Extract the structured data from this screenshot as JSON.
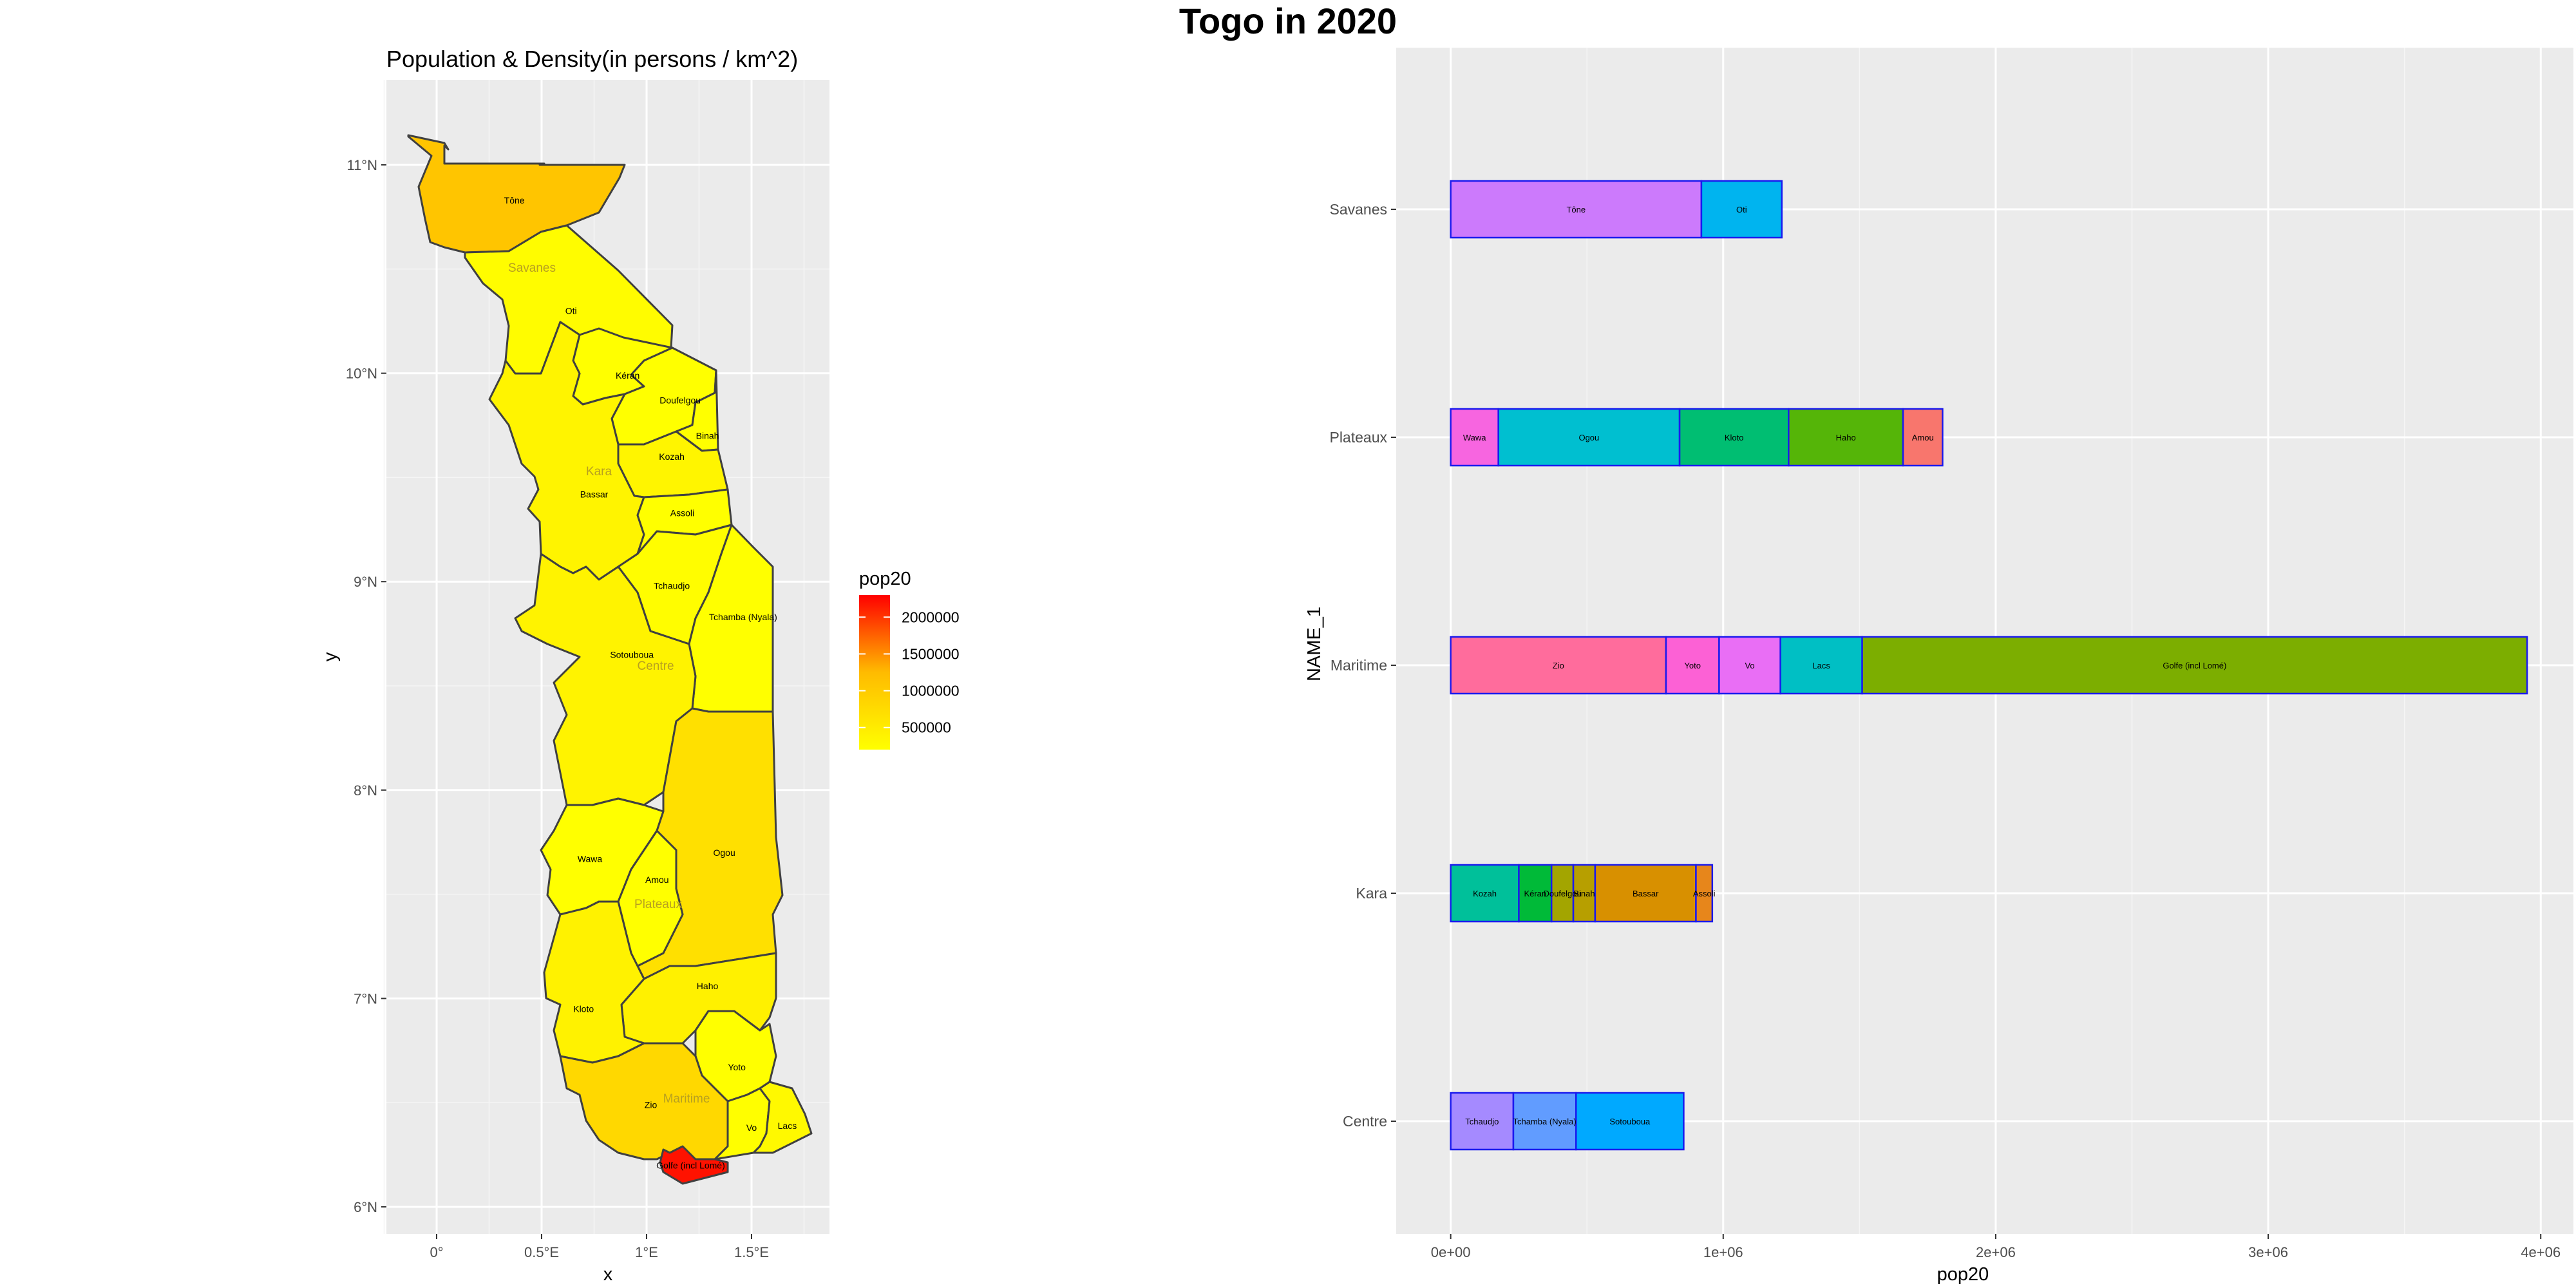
{
  "page": {
    "title": "Togo in 2020"
  },
  "colors": {
    "panel_bg": "#ebebeb",
    "grid": "#ffffff",
    "border": "#404040",
    "bar_outline": "#1a1aee",
    "low": "#ffff00",
    "mid": "#ffbb00",
    "high": "#ff0000"
  },
  "map": {
    "title": "Population & Density(in persons / km^2)",
    "xlabel": "x",
    "ylabel": "y",
    "x_ticks": [
      "0°",
      "0.5°E",
      "1°E",
      "1.5°E"
    ],
    "y_ticks": [
      "6°N",
      "7°N",
      "8°N",
      "9°N",
      "10°N",
      "11°N"
    ],
    "legend": {
      "title": "pop20",
      "labels": [
        "2000000",
        "1500000",
        "1000000",
        "500000"
      ],
      "range": [
        200000,
        2300000
      ]
    },
    "region_labels": [
      "Savanes",
      "Kara",
      "Centre",
      "Plateaux",
      "Maritime"
    ],
    "prefectures": [
      {
        "name": "Tône",
        "lon": 0.37,
        "lat": 10.83,
        "pop": 1100000
      },
      {
        "name": "Oti",
        "lon": 0.64,
        "lat": 10.3,
        "pop": 250000
      },
      {
        "name": "Kéran",
        "lon": 0.91,
        "lat": 9.99,
        "pop": 180000
      },
      {
        "name": "Doufelgou",
        "lon": 1.16,
        "lat": 9.87,
        "pop": 160000
      },
      {
        "name": "Binah",
        "lon": 1.29,
        "lat": 9.7,
        "pop": 180000
      },
      {
        "name": "Kozah",
        "lon": 1.12,
        "lat": 9.6,
        "pop": 350000
      },
      {
        "name": "Bassar",
        "lon": 0.75,
        "lat": 9.42,
        "pop": 370000
      },
      {
        "name": "Assoli",
        "lon": 1.17,
        "lat": 9.33,
        "pop": 150000
      },
      {
        "name": "Tchaudjo",
        "lon": 1.12,
        "lat": 8.98,
        "pop": 230000
      },
      {
        "name": "Tchamba (Nyala)",
        "lon": 1.46,
        "lat": 8.83,
        "pop": 180000
      },
      {
        "name": "Sotouboua",
        "lon": 0.93,
        "lat": 8.65,
        "pop": 390000
      },
      {
        "name": "Wawa",
        "lon": 0.73,
        "lat": 7.67,
        "pop": 180000
      },
      {
        "name": "Ogou",
        "lon": 1.37,
        "lat": 7.7,
        "pop": 680000
      },
      {
        "name": "Amou",
        "lon": 1.05,
        "lat": 7.57,
        "pop": 150000
      },
      {
        "name": "Haho",
        "lon": 1.29,
        "lat": 7.06,
        "pop": 420000
      },
      {
        "name": "Kloto",
        "lon": 0.7,
        "lat": 6.95,
        "pop": 400000
      },
      {
        "name": "Yoto",
        "lon": 1.43,
        "lat": 6.67,
        "pop": 190000
      },
      {
        "name": "Zio",
        "lon": 1.02,
        "lat": 6.49,
        "pop": 800000
      },
      {
        "name": "Vo",
        "lon": 1.5,
        "lat": 6.38,
        "pop": 220000
      },
      {
        "name": "Lacs",
        "lon": 1.67,
        "lat": 6.39,
        "pop": 300000
      },
      {
        "name": "Golfe (incl Lomé)",
        "lon": 1.21,
        "lat": 6.2,
        "pop": 2200000
      }
    ]
  },
  "chart_data": {
    "type": "bar",
    "orientation": "horizontal",
    "stacked": true,
    "xlabel": "pop20",
    "ylabel": "NAME_1",
    "xlim": [
      -200000,
      4120000
    ],
    "x_ticks": [
      {
        "value": 0,
        "label": "0e+00"
      },
      {
        "value": 1000000,
        "label": "1e+06"
      },
      {
        "value": 2000000,
        "label": "2e+06"
      },
      {
        "value": 3000000,
        "label": "3e+06"
      },
      {
        "value": 4000000,
        "label": "4e+06"
      }
    ],
    "categories": [
      "Centre",
      "Kara",
      "Maritime",
      "Plateaux",
      "Savanes"
    ],
    "series": [
      {
        "category": "Savanes",
        "segments": [
          {
            "label": "Tône",
            "value": 920000,
            "color": "#cc7afc"
          },
          {
            "label": "Oti",
            "value": 295000,
            "color": "#00b4ef"
          }
        ]
      },
      {
        "category": "Plateaux",
        "segments": [
          {
            "label": "Wawa",
            "value": 175000,
            "color": "#f765e0"
          },
          {
            "label": "Ogou",
            "value": 665000,
            "color": "#00bfd0"
          },
          {
            "label": "Kloto",
            "value": 400000,
            "color": "#00be72"
          },
          {
            "label": "Haho",
            "value": 420000,
            "color": "#55b508"
          },
          {
            "label": "Amou",
            "value": 145000,
            "color": "#f8766d"
          }
        ]
      },
      {
        "category": "Maritime",
        "segments": [
          {
            "label": "Zio",
            "value": 790000,
            "color": "#ff6c9c"
          },
          {
            "label": "Yoto",
            "value": 195000,
            "color": "#fc61d5"
          },
          {
            "label": "Vo",
            "value": 225000,
            "color": "#e96ef5"
          },
          {
            "label": "Lacs",
            "value": 300000,
            "color": "#00bfc4"
          },
          {
            "label": "Golfe (incl Lomé)",
            "value": 2440000,
            "color": "#7cae00"
          }
        ]
      },
      {
        "category": "Kara",
        "segments": [
          {
            "label": "Kozah",
            "value": 250000,
            "color": "#00c09a"
          },
          {
            "label": "Kéran",
            "value": 120000,
            "color": "#00ba38"
          },
          {
            "label": "Doufelgou",
            "value": 80000,
            "color": "#a3a500"
          },
          {
            "label": "Binah",
            "value": 80000,
            "color": "#b79f00"
          },
          {
            "label": "Bassar",
            "value": 370000,
            "color": "#d89000"
          },
          {
            "label": "Assoli",
            "value": 60000,
            "color": "#e7861b"
          }
        ]
      },
      {
        "category": "Centre",
        "segments": [
          {
            "label": "Tchaudjo",
            "value": 230000,
            "color": "#a58aff"
          },
          {
            "label": "Tchamba (Nyala)",
            "value": 230000,
            "color": "#619cff"
          },
          {
            "label": "Sotouboua",
            "value": 395000,
            "color": "#00a9ff"
          }
        ]
      }
    ]
  }
}
